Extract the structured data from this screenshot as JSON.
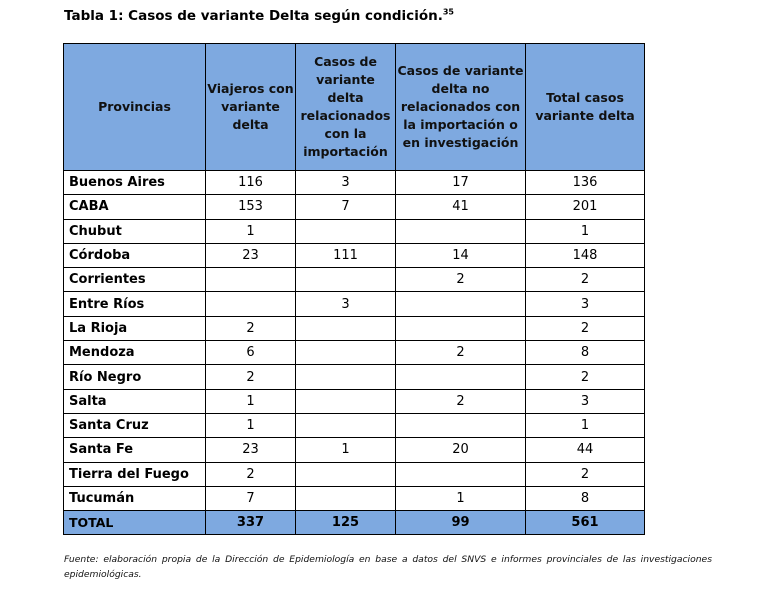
{
  "title": {
    "text": "Tabla 1: Casos de variante Delta según condición.",
    "footnote_ref": "35"
  },
  "table": {
    "columns": [
      "Provincias",
      "Viajeros con variante delta",
      "Casos de variante delta relacionados con la importación",
      "Casos de variante delta no relacionados con la importación o en investigación",
      "Total casos variante delta"
    ],
    "rows": [
      {
        "provincia": "Buenos Aires",
        "viajeros": "116",
        "relacionados": "3",
        "no_relacionados": "17",
        "total": "136"
      },
      {
        "provincia": "CABA",
        "viajeros": "153",
        "relacionados": "7",
        "no_relacionados": "41",
        "total": "201"
      },
      {
        "provincia": "Chubut",
        "viajeros": "1",
        "relacionados": "",
        "no_relacionados": "",
        "total": "1"
      },
      {
        "provincia": "Córdoba",
        "viajeros": "23",
        "relacionados": "111",
        "no_relacionados": "14",
        "total": "148"
      },
      {
        "provincia": "Corrientes",
        "viajeros": "",
        "relacionados": "",
        "no_relacionados": "2",
        "total": "2"
      },
      {
        "provincia": "Entre Ríos",
        "viajeros": "",
        "relacionados": "3",
        "no_relacionados": "",
        "total": "3"
      },
      {
        "provincia": "La Rioja",
        "viajeros": "2",
        "relacionados": "",
        "no_relacionados": "",
        "total": "2"
      },
      {
        "provincia": "Mendoza",
        "viajeros": "6",
        "relacionados": "",
        "no_relacionados": "2",
        "total": "8"
      },
      {
        "provincia": "Río Negro",
        "viajeros": "2",
        "relacionados": "",
        "no_relacionados": "",
        "total": "2"
      },
      {
        "provincia": "Salta",
        "viajeros": "1",
        "relacionados": "",
        "no_relacionados": "2",
        "total": "3"
      },
      {
        "provincia": "Santa Cruz",
        "viajeros": "1",
        "relacionados": "",
        "no_relacionados": "",
        "total": "1"
      },
      {
        "provincia": "Santa Fe",
        "viajeros": "23",
        "relacionados": "1",
        "no_relacionados": "20",
        "total": "44"
      },
      {
        "provincia": "Tierra del Fuego",
        "viajeros": "2",
        "relacionados": "",
        "no_relacionados": "",
        "total": "2"
      },
      {
        "provincia": "Tucumán",
        "viajeros": "7",
        "relacionados": "",
        "no_relacionados": "1",
        "total": "8"
      }
    ],
    "total": {
      "provincia": "TOTAL",
      "viajeros": "337",
      "relacionados": "125",
      "no_relacionados": "99",
      "total": "561"
    }
  },
  "source": "Fuente: elaboración propia de la Dirección de Epidemiología en base a datos del SNVS e informes provinciales de las investigaciones epidemiológicas.",
  "colors": {
    "header_bg": "#7ea9e0",
    "border": "#000000"
  }
}
